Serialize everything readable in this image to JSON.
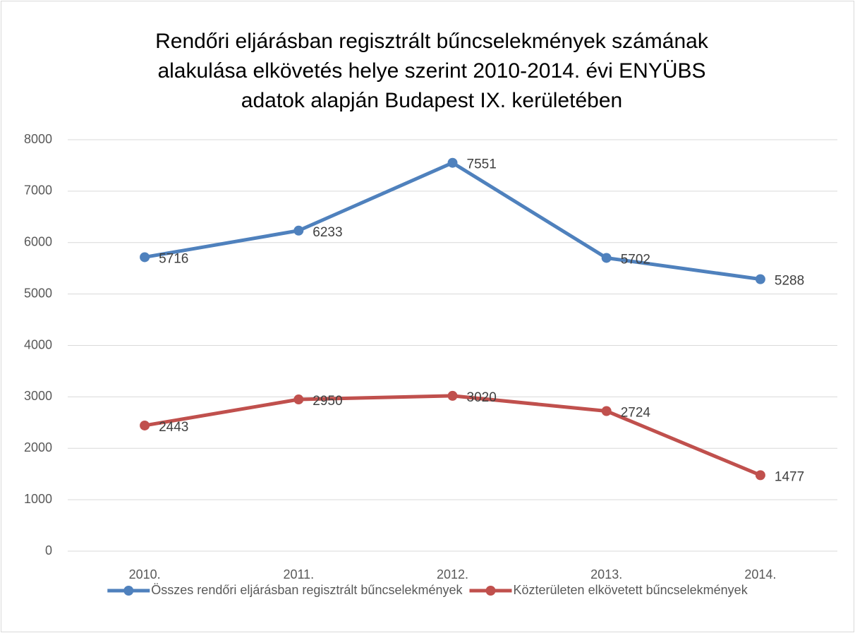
{
  "chart_data": {
    "type": "line",
    "title": [
      "Rendőri eljárásban regisztrált bűncselekmények számának",
      "alakulása elkövetés helye szerint 2010-2014. évi ENYÜBS",
      "adatok alapján Budapest IX. kerületében"
    ],
    "categories": [
      "2010.",
      "2011.",
      "2012.",
      "2013.",
      "2014."
    ],
    "series": [
      {
        "name": "Összes rendőri eljárásban regisztrált bűncselekmények",
        "color": "#4f81bd",
        "values": [
          5716,
          6233,
          7551,
          5702,
          5288
        ]
      },
      {
        "name": "Közterületen elkövetett bűncselekmények",
        "color": "#c0504d",
        "values": [
          2443,
          2950,
          3020,
          2724,
          1477
        ]
      }
    ],
    "ylim": [
      0,
      8000
    ],
    "yticks": [
      0,
      1000,
      2000,
      3000,
      4000,
      5000,
      6000,
      7000,
      8000
    ],
    "grid": true,
    "legend": "bottom"
  }
}
